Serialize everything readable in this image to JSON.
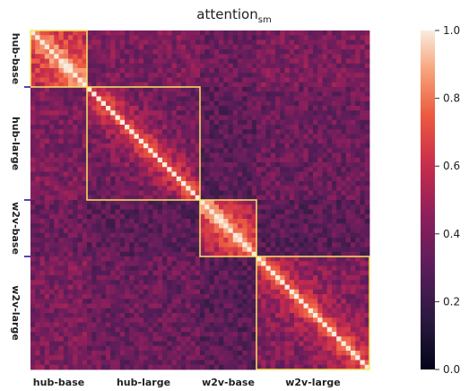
{
  "chart_data": {
    "type": "heatmap",
    "title": "attention",
    "title_subscript": "sm",
    "xlabel": "",
    "ylabel": "",
    "groups": [
      {
        "name": "hub-base",
        "layers": 12
      },
      {
        "name": "hub-large",
        "layers": 24
      },
      {
        "name": "w2v-base",
        "layers": 12
      },
      {
        "name": "w2v-large",
        "layers": 24
      }
    ],
    "x_tick_labels": [
      "hub-base",
      "hub-large",
      "w2v-base",
      "w2v-large"
    ],
    "y_tick_labels": [
      "hub-base",
      "hub-large",
      "w2v-base",
      "w2v-large"
    ],
    "colorbar": {
      "min": 0.0,
      "max": 1.0,
      "ticks": [
        "0.0",
        "0.2",
        "0.4",
        "0.6",
        "0.8",
        "1.0"
      ],
      "colormap": "rocket"
    },
    "diagonal_value": 1.0,
    "block_highlight_color": "#f5e663",
    "tick_marker_color": "#5a3fc0",
    "block_mean_similarity": [
      [
        0.55,
        0.4,
        0.35,
        0.4
      ],
      [
        0.4,
        0.35,
        0.3,
        0.35
      ],
      [
        0.35,
        0.3,
        0.5,
        0.3
      ],
      [
        0.4,
        0.35,
        0.3,
        0.4
      ]
    ]
  }
}
